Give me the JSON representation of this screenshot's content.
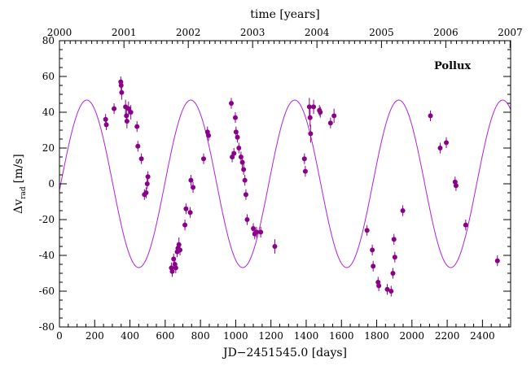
{
  "chart_data": {
    "type": "scatter",
    "title": "",
    "annotation": "Pollux",
    "xlabel": "JD−2451545.0 [days]",
    "ylabel_main": "Δv",
    "ylabel_sub": "rad",
    "ylabel_unit": "[m/s]",
    "top_label": "time [years]",
    "xlim": [
      0,
      2560
    ],
    "ylim": [
      -80,
      80
    ],
    "x_ticks": [
      0,
      200,
      400,
      600,
      800,
      1000,
      1200,
      1400,
      1600,
      1800,
      2000,
      2200,
      2400
    ],
    "y_ticks": [
      -80,
      -60,
      -40,
      -20,
      0,
      20,
      40,
      60,
      80
    ],
    "top_ticks": [
      {
        "label": "2000",
        "x": 0
      },
      {
        "label": "2001",
        "x": 366
      },
      {
        "label": "2002",
        "x": 731
      },
      {
        "label": "2003",
        "x": 1096
      },
      {
        "label": "2004",
        "x": 1461
      },
      {
        "label": "2005",
        "x": 1827
      },
      {
        "label": "2006",
        "x": 2192
      },
      {
        "label": "2007",
        "x": 2557
      }
    ],
    "grid": false,
    "colors": {
      "points": "#8b008b",
      "curve": "#b020e0",
      "axes": "#000000"
    },
    "orbit_fit": {
      "period": 590,
      "amplitude": 46.8,
      "offset": 0,
      "phase_zero_x": 155
    },
    "points": [
      {
        "x": 262,
        "y": 36,
        "err": 3
      },
      {
        "x": 266,
        "y": 33,
        "err": 3
      },
      {
        "x": 310,
        "y": 42,
        "err": 3
      },
      {
        "x": 348,
        "y": 57,
        "err": 3
      },
      {
        "x": 350,
        "y": 55,
        "err": 3
      },
      {
        "x": 353,
        "y": 51,
        "err": 4
      },
      {
        "x": 375,
        "y": 43,
        "err": 4
      },
      {
        "x": 380,
        "y": 38,
        "err": 4
      },
      {
        "x": 383,
        "y": 35,
        "err": 4
      },
      {
        "x": 392,
        "y": 42,
        "err": 4
      },
      {
        "x": 405,
        "y": 40,
        "err": 4
      },
      {
        "x": 440,
        "y": 32,
        "err": 3
      },
      {
        "x": 445,
        "y": 21,
        "err": 3
      },
      {
        "x": 465,
        "y": 14,
        "err": 3
      },
      {
        "x": 482,
        "y": -6,
        "err": 3
      },
      {
        "x": 492,
        "y": -5,
        "err": 3
      },
      {
        "x": 498,
        "y": 0,
        "err": 3
      },
      {
        "x": 502,
        "y": 4,
        "err": 3
      },
      {
        "x": 635,
        "y": -47,
        "err": 3
      },
      {
        "x": 640,
        "y": -49,
        "err": 3
      },
      {
        "x": 648,
        "y": -42,
        "err": 3
      },
      {
        "x": 655,
        "y": -45,
        "err": 3
      },
      {
        "x": 660,
        "y": -47,
        "err": 3
      },
      {
        "x": 668,
        "y": -38,
        "err": 3
      },
      {
        "x": 672,
        "y": -36,
        "err": 3
      },
      {
        "x": 678,
        "y": -34,
        "err": 4
      },
      {
        "x": 684,
        "y": -37,
        "err": 3
      },
      {
        "x": 712,
        "y": -23,
        "err": 3
      },
      {
        "x": 718,
        "y": -14,
        "err": 3
      },
      {
        "x": 742,
        "y": -16,
        "err": 3
      },
      {
        "x": 746,
        "y": 2,
        "err": 3
      },
      {
        "x": 758,
        "y": -2,
        "err": 3
      },
      {
        "x": 818,
        "y": 14,
        "err": 3
      },
      {
        "x": 840,
        "y": 29,
        "err": 3
      },
      {
        "x": 846,
        "y": 27,
        "err": 3
      },
      {
        "x": 975,
        "y": 45,
        "err": 3
      },
      {
        "x": 980,
        "y": 15,
        "err": 3
      },
      {
        "x": 990,
        "y": 17,
        "err": 3
      },
      {
        "x": 998,
        "y": 37,
        "err": 3
      },
      {
        "x": 1002,
        "y": 29,
        "err": 3
      },
      {
        "x": 1010,
        "y": 26,
        "err": 3
      },
      {
        "x": 1018,
        "y": 20,
        "err": 3
      },
      {
        "x": 1030,
        "y": 15,
        "err": 3
      },
      {
        "x": 1038,
        "y": 12,
        "err": 3
      },
      {
        "x": 1045,
        "y": 8,
        "err": 3
      },
      {
        "x": 1052,
        "y": 2,
        "err": 3
      },
      {
        "x": 1058,
        "y": -6,
        "err": 3
      },
      {
        "x": 1065,
        "y": -20,
        "err": 3
      },
      {
        "x": 1100,
        "y": -25,
        "err": 3
      },
      {
        "x": 1108,
        "y": -28,
        "err": 3
      },
      {
        "x": 1118,
        "y": -27,
        "err": 3
      },
      {
        "x": 1142,
        "y": -27,
        "err": 3
      },
      {
        "x": 1222,
        "y": -35,
        "err": 4
      },
      {
        "x": 1390,
        "y": 14,
        "err": 3
      },
      {
        "x": 1395,
        "y": 7,
        "err": 3
      },
      {
        "x": 1418,
        "y": 43,
        "err": 5
      },
      {
        "x": 1422,
        "y": 37,
        "err": 5
      },
      {
        "x": 1425,
        "y": 28,
        "err": 5
      },
      {
        "x": 1442,
        "y": 43,
        "err": 4
      },
      {
        "x": 1475,
        "y": 41,
        "err": 3
      },
      {
        "x": 1480,
        "y": 40,
        "err": 3
      },
      {
        "x": 1538,
        "y": 34,
        "err": 3
      },
      {
        "x": 1558,
        "y": 38,
        "err": 4
      },
      {
        "x": 1745,
        "y": -26,
        "err": 3
      },
      {
        "x": 1775,
        "y": -37,
        "err": 3
      },
      {
        "x": 1780,
        "y": -46,
        "err": 3
      },
      {
        "x": 1808,
        "y": -55,
        "err": 3
      },
      {
        "x": 1812,
        "y": -57,
        "err": 3
      },
      {
        "x": 1860,
        "y": -59,
        "err": 3
      },
      {
        "x": 1882,
        "y": -60,
        "err": 3
      },
      {
        "x": 1892,
        "y": -50,
        "err": 3
      },
      {
        "x": 1898,
        "y": -31,
        "err": 3
      },
      {
        "x": 1903,
        "y": -41,
        "err": 3
      },
      {
        "x": 1948,
        "y": -15,
        "err": 3
      },
      {
        "x": 2105,
        "y": 38,
        "err": 3
      },
      {
        "x": 2160,
        "y": 20,
        "err": 3
      },
      {
        "x": 2195,
        "y": 23,
        "err": 3
      },
      {
        "x": 2245,
        "y": 1,
        "err": 3
      },
      {
        "x": 2250,
        "y": -1,
        "err": 3
      },
      {
        "x": 2305,
        "y": -23,
        "err": 3
      },
      {
        "x": 2485,
        "y": -43,
        "err": 3
      }
    ]
  }
}
